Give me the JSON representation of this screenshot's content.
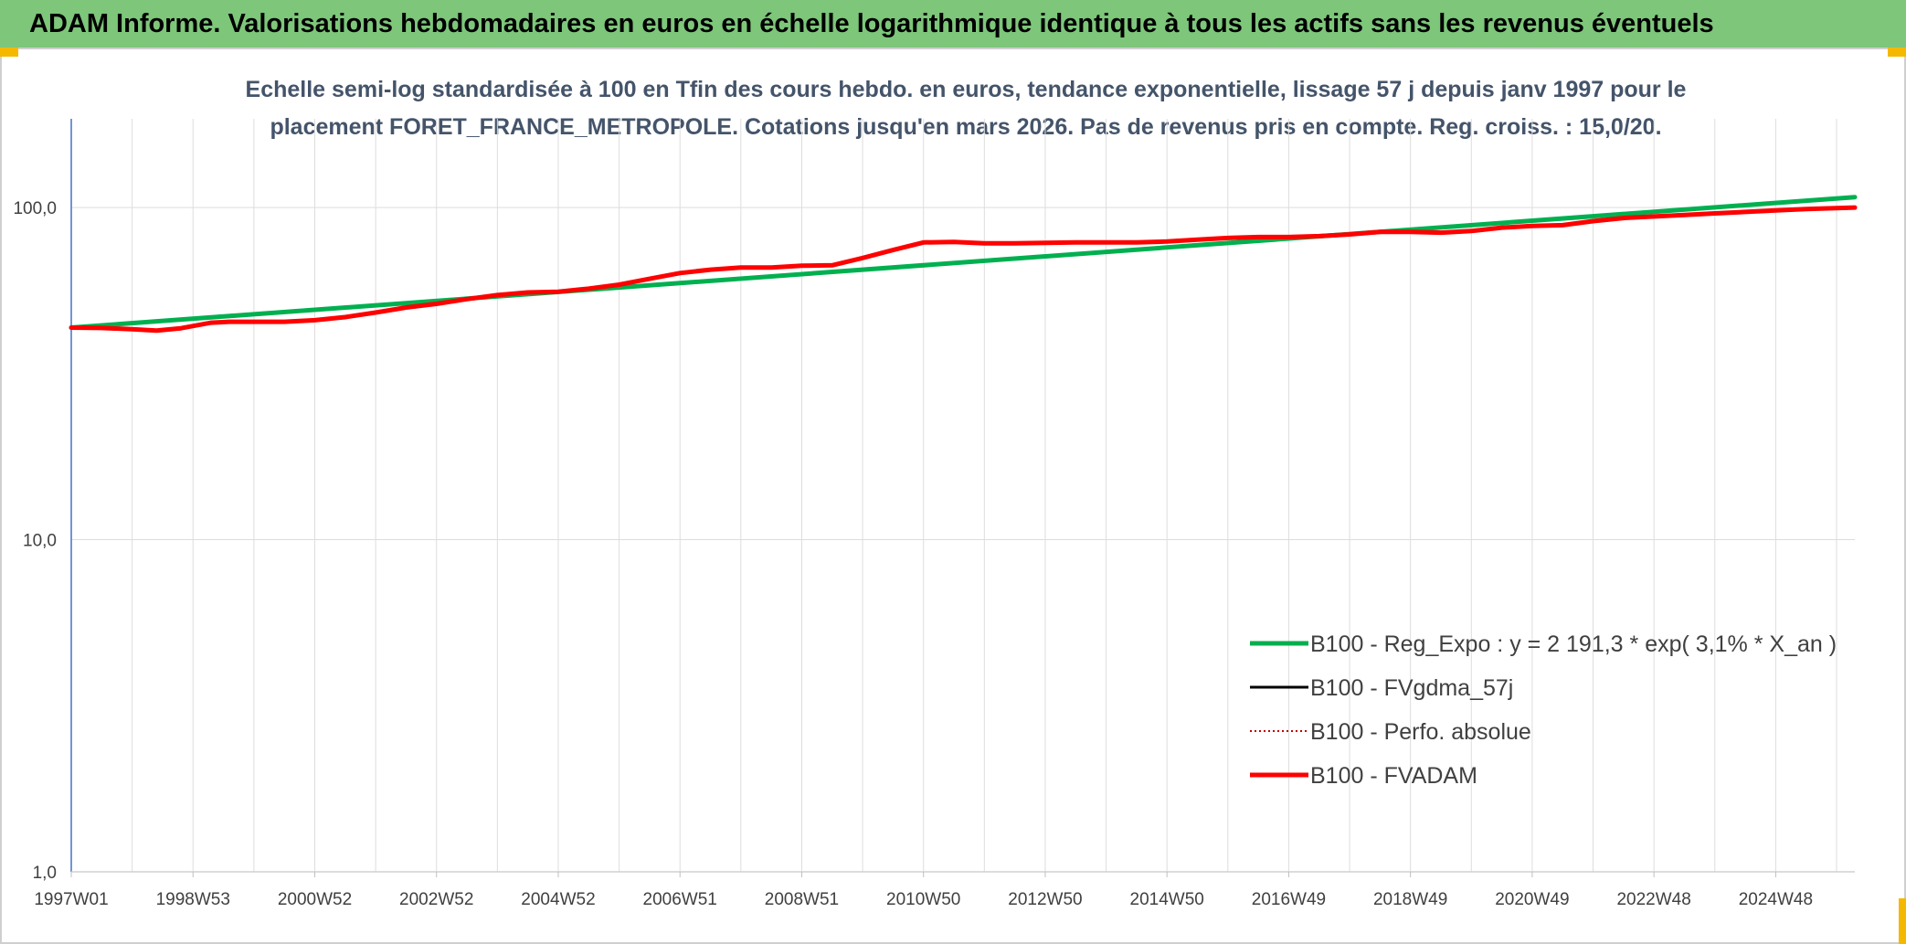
{
  "banner": {
    "title": "ADAM Informe. Valorisations hebdomadaires en euros en échelle logarithmique identique à tous les actifs sans les revenus éventuels"
  },
  "colors": {
    "banner_bg": "#7dc67a",
    "regression": "#00b050",
    "fvgdma": "#000000",
    "perfo": "#c00000",
    "fvadam": "#ff0000",
    "corner_accent": "#f5b800"
  },
  "chart_data": {
    "type": "line",
    "title_lines": [
      "Echelle semi-log standardisée à 100 en Tfin des cours hebdo. en euros, tendance exponentielle, lissage 57 j depuis janv 1997 pour le",
      "placement FORET_FRANCE_METROPOLE. Cotations jusqu'en mars 2026. Pas de revenus pris en compte. Reg. croiss. : 15,0/20."
    ],
    "y_scale": "log",
    "ylim": [
      1,
      185
    ],
    "y_ticks": [
      {
        "value": 1,
        "label": "1,0"
      },
      {
        "value": 10,
        "label": "10,0"
      },
      {
        "value": 100,
        "label": "100,0"
      }
    ],
    "xlim": [
      1997.0,
      2026.3
    ],
    "x_ticks": [
      {
        "value": 1997.0,
        "label": "1997W01"
      },
      {
        "value": 1999.0,
        "label": "1998W53"
      },
      {
        "value": 2001.0,
        "label": "2000W52"
      },
      {
        "value": 2003.0,
        "label": "2002W52"
      },
      {
        "value": 2005.0,
        "label": "2004W52"
      },
      {
        "value": 2007.0,
        "label": "2006W51"
      },
      {
        "value": 2009.0,
        "label": "2008W51"
      },
      {
        "value": 2011.0,
        "label": "2010W50"
      },
      {
        "value": 2013.0,
        "label": "2012W50"
      },
      {
        "value": 2015.0,
        "label": "2014W50"
      },
      {
        "value": 2017.0,
        "label": "2016W49"
      },
      {
        "value": 2019.0,
        "label": "2018W49"
      },
      {
        "value": 2021.0,
        "label": "2020W49"
      },
      {
        "value": 2023.0,
        "label": "2022W48"
      },
      {
        "value": 2025.0,
        "label": "2024W48"
      }
    ],
    "grid": {
      "vertical": true,
      "horizontal": true
    },
    "legend_position": "bottom-right",
    "series": [
      {
        "name": "B100 - Reg_Expo : y = 2 191,3 * exp( 3,1% *  X_an )",
        "style": "solid-thick",
        "color": "#00b050",
        "x": [
          1997.0,
          2026.3
        ],
        "y": [
          43.5,
          107.5
        ]
      },
      {
        "name": "B100 - FVgdma_57j",
        "style": "solid-thin",
        "color": "#000000",
        "x": [],
        "y": []
      },
      {
        "name": "B100 - Perfo. absolue",
        "style": "dotted",
        "color": "#c00000",
        "x": [],
        "y": []
      },
      {
        "name": "B100 - FVADAM",
        "style": "solid-thick",
        "color": "#ff0000",
        "x": [
          1997.0,
          1997.5,
          1998.0,
          1998.4,
          1998.8,
          1999.3,
          1999.6,
          2000.0,
          2000.5,
          2001.0,
          2001.5,
          2002.0,
          2002.5,
          2003.0,
          2003.5,
          2004.0,
          2004.5,
          2005.0,
          2005.5,
          2006.0,
          2006.5,
          2007.0,
          2007.5,
          2008.0,
          2008.5,
          2009.0,
          2009.5,
          2010.0,
          2010.5,
          2011.0,
          2011.5,
          2012.0,
          2012.5,
          2013.0,
          2013.5,
          2014.0,
          2014.5,
          2015.0,
          2015.5,
          2016.0,
          2016.5,
          2017.0,
          2017.5,
          2018.0,
          2018.5,
          2019.0,
          2019.5,
          2020.0,
          2020.5,
          2021.0,
          2021.5,
          2022.0,
          2022.5,
          2023.0,
          2023.5,
          2024.0,
          2024.5,
          2025.0,
          2025.5,
          2026.3
        ],
        "y": [
          43.5,
          43.4,
          43.0,
          42.6,
          43.3,
          45.0,
          45.3,
          45.3,
          45.3,
          45.8,
          46.8,
          48.3,
          50.0,
          51.3,
          53.0,
          54.5,
          55.5,
          55.8,
          57.0,
          58.6,
          61.0,
          63.5,
          65.0,
          66.0,
          66.0,
          66.8,
          67.0,
          70.5,
          74.5,
          78.5,
          78.8,
          78.0,
          78.0,
          78.3,
          78.5,
          78.5,
          78.5,
          79.0,
          80.0,
          81.0,
          81.5,
          81.5,
          82.0,
          83.0,
          84.5,
          84.5,
          84.0,
          85.0,
          87.0,
          88.0,
          88.5,
          91.0,
          93.0,
          94.0,
          95.0,
          96.0,
          97.0,
          98.0,
          99.0,
          100.0
        ]
      }
    ]
  }
}
